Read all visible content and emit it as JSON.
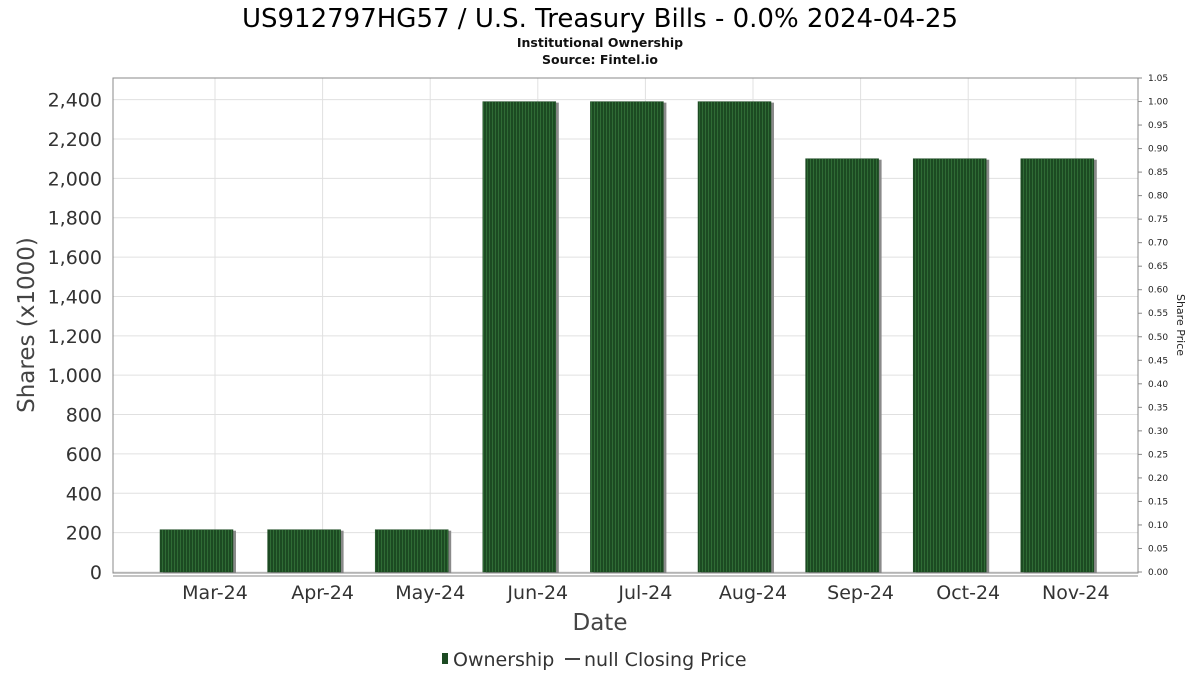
{
  "chart_data": {
    "type": "bar",
    "title": "US912797HG57 / U.S. Treasury Bills - 0.0% 2024-04-25",
    "subtitle": "Institutional Ownership",
    "source": "Source: Fintel.io",
    "xlabel": "Date",
    "ylabel": "Shares (x1000)",
    "ylabel_right": "Share Price",
    "categories": [
      "Mar-24",
      "Apr-24",
      "May-24",
      "Jun-24",
      "Jul-24",
      "Aug-24",
      "Sep-24",
      "Oct-24",
      "Nov-24"
    ],
    "series": [
      {
        "name": "Ownership",
        "values": [
          215,
          215,
          215,
          2390,
          2390,
          2390,
          2100,
          2100,
          2100
        ]
      }
    ],
    "ylim": [
      0,
      2510
    ],
    "yticks": [
      0,
      200,
      400,
      600,
      800,
      1000,
      1200,
      1400,
      1600,
      1800,
      2000,
      2200,
      2400
    ],
    "ylim_right": [
      0,
      1.05
    ],
    "yticks_right": [
      "0.00",
      "0.05",
      "0.10",
      "0.15",
      "0.20",
      "0.25",
      "0.30",
      "0.35",
      "0.40",
      "0.45",
      "0.50",
      "0.55",
      "0.60",
      "0.65",
      "0.70",
      "0.75",
      "0.80",
      "0.85",
      "0.90",
      "0.95",
      "1.00",
      "1.05"
    ],
    "legend": [
      "Ownership",
      "null Closing Price"
    ],
    "legend_position": "bottom-center",
    "grid": true,
    "colors": {
      "bar": "#1c4a22",
      "bar_stripe": "#2f6b35",
      "bar_shadow": "#8a8a8a",
      "grid": "#e0e0e0",
      "frame": "#888888"
    }
  }
}
